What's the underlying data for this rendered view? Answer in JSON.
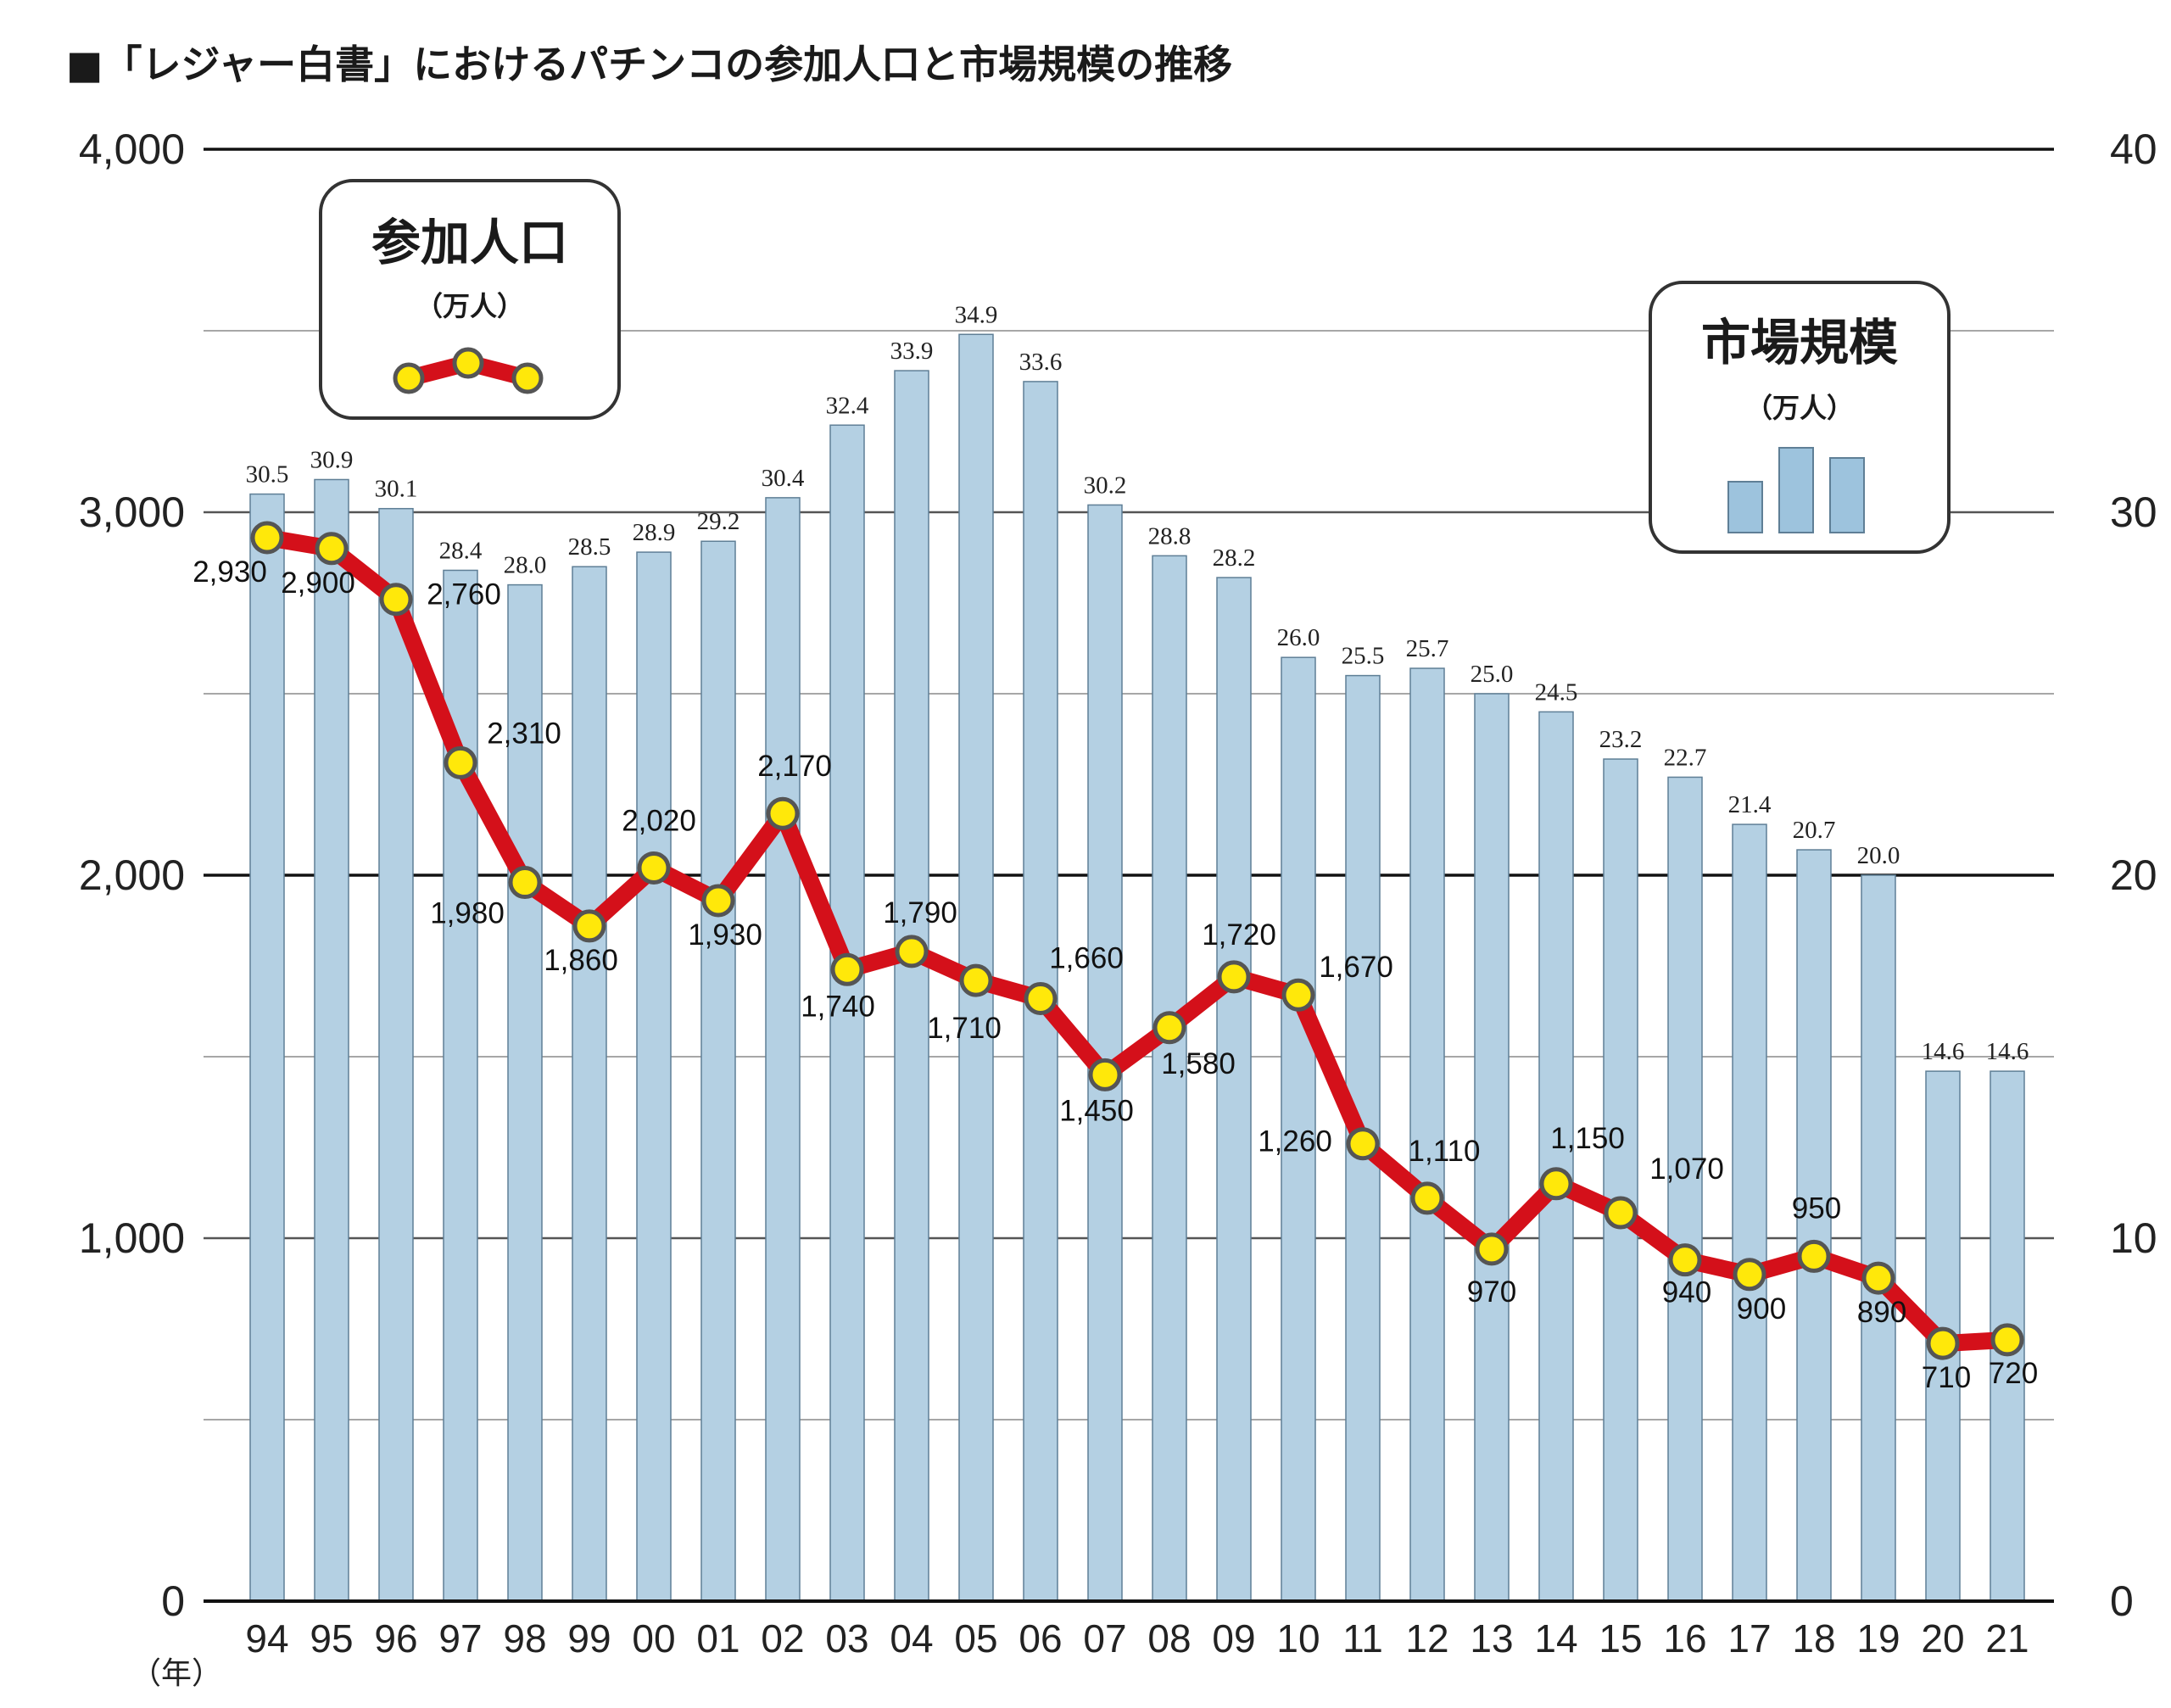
{
  "title": "■「レジャー白書」におけるパチンコの参加人口と市場規模の推移",
  "x_unit": "（年）",
  "colors": {
    "bar": "#b4d0e3",
    "bar_stroke": "#5f7f96",
    "line": "#d4101a",
    "marker": "#ffe80a",
    "marker_stroke": "#555555"
  },
  "legend": {
    "population": {
      "title": "参加人口",
      "unit": "（万人）"
    },
    "market": {
      "title": "市場規模",
      "unit": "（万人）"
    }
  },
  "chart_data": {
    "type": "bar+line",
    "categories": [
      "94",
      "95",
      "96",
      "97",
      "98",
      "99",
      "00",
      "01",
      "02",
      "03",
      "04",
      "05",
      "06",
      "07",
      "08",
      "09",
      "10",
      "11",
      "12",
      "13",
      "14",
      "15",
      "16",
      "17",
      "18",
      "19",
      "20",
      "21"
    ],
    "y_left": {
      "min": 0,
      "max": 4000,
      "ticks": [
        "0",
        "1,000",
        "2,000",
        "3,000",
        "4,000"
      ],
      "tick_values": [
        0,
        1000,
        2000,
        3000,
        4000
      ]
    },
    "y_right": {
      "min": 0,
      "max": 40,
      "ticks": [
        "0",
        "10",
        "20",
        "30",
        "40"
      ],
      "tick_values": [
        0,
        10,
        20,
        30,
        40
      ]
    },
    "grid": true,
    "series": [
      {
        "name": "市場規模",
        "type": "bar",
        "axis": "right",
        "values": [
          30.5,
          30.9,
          30.1,
          28.4,
          28.0,
          28.5,
          28.9,
          29.2,
          30.4,
          32.4,
          33.9,
          34.9,
          33.6,
          30.2,
          28.8,
          28.2,
          26.0,
          25.5,
          25.7,
          25.0,
          24.5,
          23.2,
          22.7,
          21.4,
          20.7,
          20.0,
          14.6,
          14.6
        ],
        "labels": [
          "30.5",
          "30.9",
          "30.1",
          "28.4",
          "28.0",
          "28.5",
          "28.9",
          "29.2",
          "30.4",
          "32.4",
          "33.9",
          "34.9",
          "33.6",
          "30.2",
          "28.8",
          "28.2",
          "26.0",
          "25.5",
          "25.7",
          "25.0",
          "24.5",
          "23.2",
          "22.7",
          "21.4",
          "20.7",
          "20.0",
          "14.6",
          "14.6"
        ]
      },
      {
        "name": "参加人口",
        "type": "line",
        "axis": "left",
        "values": [
          2930,
          2900,
          2760,
          2310,
          1980,
          1860,
          2020,
          1930,
          2170,
          1740,
          1790,
          1710,
          1660,
          1450,
          1580,
          1720,
          1670,
          1260,
          1110,
          970,
          1150,
          1070,
          940,
          900,
          950,
          890,
          710,
          720
        ],
        "labels": [
          "2,930",
          "2,900",
          "2,760",
          "2,310",
          "1,980",
          "1,860",
          "2,020",
          "1,930",
          "2,170",
          "1,740",
          "1,790",
          "1,710",
          "1,660",
          "1,450",
          "1,580",
          "1,720",
          "1,670",
          "1,260",
          "1,110",
          "970",
          "1,150",
          "1,070",
          "940",
          "900",
          "950",
          "890",
          "710",
          "720"
        ]
      }
    ]
  }
}
